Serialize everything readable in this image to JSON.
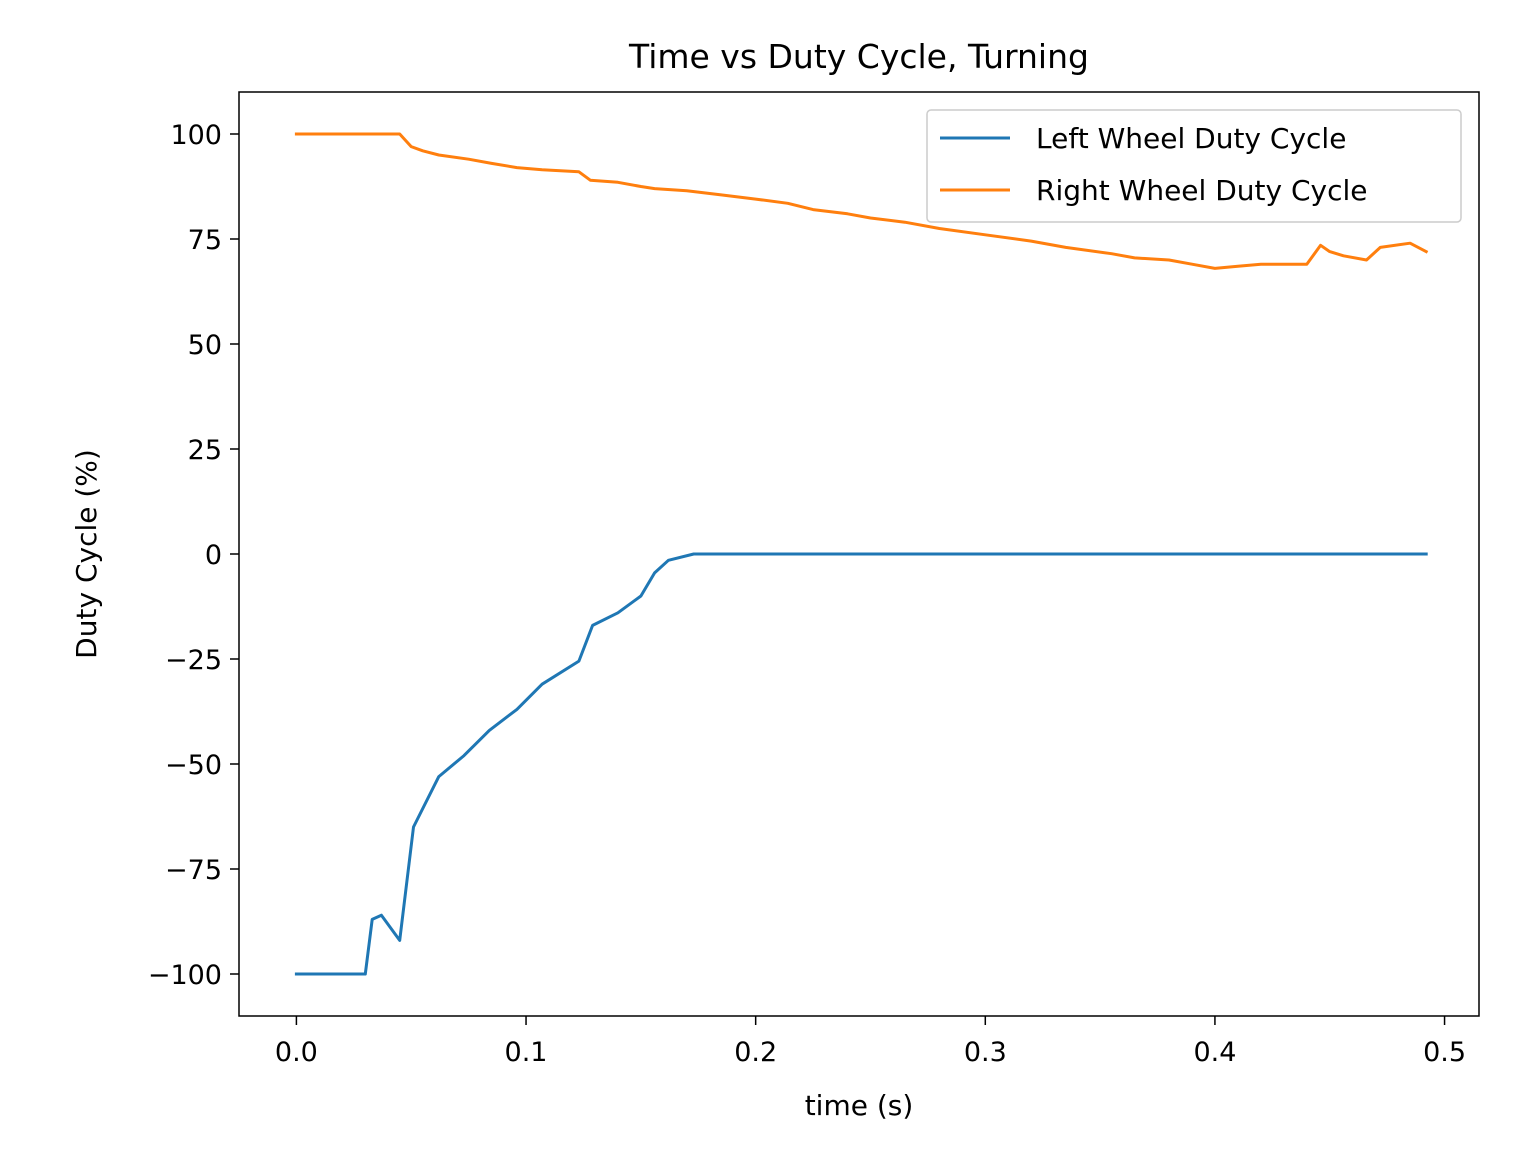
{
  "chart_data": {
    "type": "line",
    "title": "Time vs Duty Cycle, Turning",
    "xlabel": "time (s)",
    "ylabel": "Duty Cycle (%)",
    "xlim": [
      -0.025,
      0.515
    ],
    "ylim": [
      -110,
      110
    ],
    "grid": false,
    "legend_position": "top-right",
    "x_ticks": [
      {
        "value": 0.0,
        "label": "0.0"
      },
      {
        "value": 0.1,
        "label": "0.1"
      },
      {
        "value": 0.2,
        "label": "0.2"
      },
      {
        "value": 0.3,
        "label": "0.3"
      },
      {
        "value": 0.4,
        "label": "0.4"
      },
      {
        "value": 0.5,
        "label": "0.5"
      }
    ],
    "y_ticks": [
      {
        "value": 100,
        "label": "100"
      },
      {
        "value": 75,
        "label": "75"
      },
      {
        "value": 50,
        "label": "50"
      },
      {
        "value": 25,
        "label": "25"
      },
      {
        "value": 0,
        "label": "0"
      },
      {
        "value": -25,
        "label": "−25"
      },
      {
        "value": -50,
        "label": "−50"
      },
      {
        "value": -75,
        "label": "−75"
      },
      {
        "value": -100,
        "label": "−100"
      }
    ],
    "series": [
      {
        "name": "Left Wheel Duty Cycle",
        "color": "#1f77b4",
        "x": [
          0.0,
          0.006,
          0.012,
          0.018,
          0.024,
          0.03,
          0.033,
          0.037,
          0.045,
          0.051,
          0.062,
          0.073,
          0.084,
          0.096,
          0.107,
          0.123,
          0.129,
          0.14,
          0.15,
          0.156,
          0.162,
          0.173,
          0.19,
          0.25,
          0.3,
          0.35,
          0.4,
          0.45,
          0.492
        ],
        "y": [
          -100,
          -100,
          -100,
          -100,
          -100,
          -100,
          -87,
          -86,
          -92,
          -65,
          -53,
          -48,
          -42,
          -37,
          -31,
          -25.5,
          -17,
          -14,
          -10,
          -4.5,
          -1.5,
          0,
          0,
          0,
          0,
          0,
          0,
          0,
          0
        ]
      },
      {
        "name": "Right Wheel Duty Cycle",
        "color": "#ff7f0e",
        "x": [
          0.0,
          0.01,
          0.02,
          0.03,
          0.045,
          0.05,
          0.055,
          0.062,
          0.075,
          0.085,
          0.096,
          0.107,
          0.123,
          0.128,
          0.14,
          0.15,
          0.156,
          0.17,
          0.185,
          0.2,
          0.214,
          0.225,
          0.24,
          0.25,
          0.265,
          0.28,
          0.3,
          0.32,
          0.335,
          0.355,
          0.365,
          0.38,
          0.39,
          0.4,
          0.41,
          0.42,
          0.43,
          0.44,
          0.446,
          0.45,
          0.456,
          0.466,
          0.472,
          0.485,
          0.492
        ],
        "y": [
          100,
          100,
          100,
          100,
          100,
          97,
          96,
          95,
          94,
          93,
          92,
          91.5,
          91,
          89,
          88.5,
          87.5,
          87,
          86.5,
          85.5,
          84.5,
          83.5,
          82,
          81,
          80,
          79,
          77.5,
          76,
          74.5,
          73,
          71.5,
          70.5,
          70,
          69,
          68,
          68.5,
          69,
          69,
          69,
          73.5,
          72,
          71,
          70,
          73,
          74,
          72
        ]
      }
    ]
  }
}
